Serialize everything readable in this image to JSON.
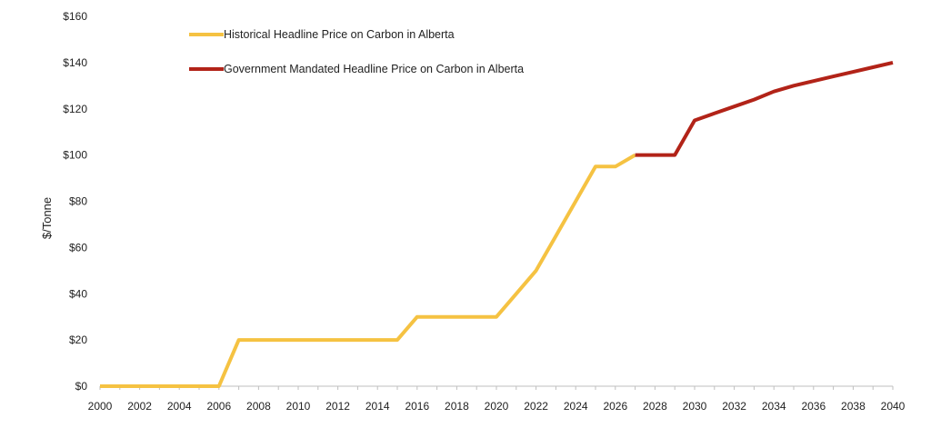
{
  "chart_data": {
    "type": "line",
    "title": "",
    "xlabel": "",
    "ylabel": "$/Tonne",
    "xlim": [
      2000,
      2040
    ],
    "ylim": [
      0,
      160
    ],
    "x_ticks": [
      "2000",
      "2002",
      "2004",
      "2006",
      "2008",
      "2010",
      "2012",
      "2014",
      "2016",
      "2018",
      "2020",
      "2022",
      "2024",
      "2026",
      "2028",
      "2030",
      "2032",
      "2034",
      "2036",
      "2038",
      "2040"
    ],
    "y_ticks": [
      "$0",
      "$20",
      "$40",
      "$60",
      "$80",
      "$100",
      "$120",
      "$140",
      "$160"
    ],
    "grid": false,
    "legend_position": "top-left",
    "series": [
      {
        "name": "Historical Headline Price on Carbon in Alberta",
        "color": "#F5C242",
        "x": [
          2000,
          2001,
          2002,
          2003,
          2004,
          2005,
          2006,
          2007,
          2008,
          2009,
          2010,
          2011,
          2012,
          2013,
          2014,
          2015,
          2016,
          2017,
          2018,
          2019,
          2020,
          2021,
          2022,
          2023,
          2024,
          2025,
          2026,
          2027
        ],
        "values": [
          0,
          0,
          0,
          0,
          0,
          0,
          0,
          20,
          20,
          20,
          20,
          20,
          20,
          20,
          20,
          20,
          30,
          30,
          30,
          30,
          30,
          40,
          50,
          65,
          80,
          95,
          95,
          100
        ]
      },
      {
        "name": "Government Mandated Headline Price on Carbon in Alberta",
        "color": "#B22318",
        "x": [
          2027,
          2028,
          2029,
          2030,
          2031,
          2032,
          2033,
          2034,
          2035,
          2036,
          2037,
          2038,
          2039,
          2040
        ],
        "values": [
          100,
          100,
          100,
          115,
          118,
          121,
          124,
          127.5,
          130,
          132,
          134,
          136,
          138,
          140
        ]
      }
    ]
  }
}
